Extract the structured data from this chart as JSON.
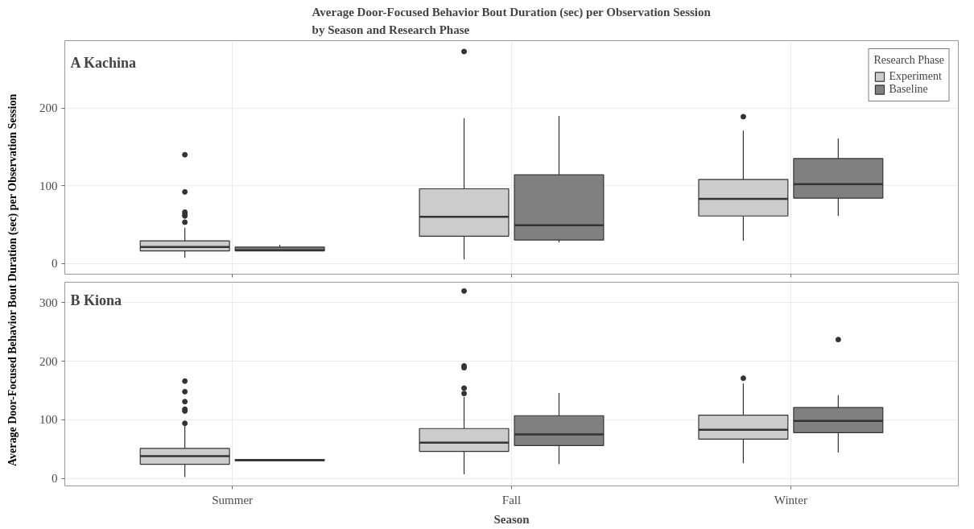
{
  "chart_data": [
    {
      "type": "box",
      "title": "Average Door-Focused Behavior Bout Duration (sec) per Observation Session\nby Season and Research Phase",
      "ylabel": "Average Door-Focused Behavior Bout Duration (sec) per Observation Session",
      "annotations": [
        "A Kachina"
      ],
      "ylim": [
        -14,
        287
      ],
      "yticks": [
        0,
        100,
        200
      ],
      "grid": true,
      "legend": "top right",
      "legend_title": "Research Phase",
      "tick_labels": "y",
      "series": [
        {
          "name": "Experiment",
          "color": "#cccccc",
          "boxes": [
            {
              "low": 7,
              "q1": 16,
              "median": 21,
              "q3": 29,
              "high": 46,
              "outliers": [
                140,
                92,
                66,
                63,
                61,
                53
              ]
            },
            {
              "low": 5,
              "q1": 35,
              "median": 60,
              "q3": 96,
              "high": 187,
              "outliers": [
                273
              ]
            },
            {
              "low": 29,
              "q1": 61,
              "median": 83,
              "q3": 108,
              "high": 171,
              "outliers": [
                189
              ]
            }
          ]
        },
        {
          "name": "Baseline",
          "color": "#808080",
          "boxes": [
            {
              "low": 16,
              "q1": 16,
              "median": 17,
              "q3": 21,
              "high": 24
            },
            {
              "low": 27,
              "q1": 30,
              "median": 49,
              "q3": 114,
              "high": 190
            },
            {
              "low": 61,
              "q1": 84,
              "median": 102,
              "q3": 135,
              "high": 161
            }
          ]
        }
      ]
    },
    {
      "type": "box",
      "xlabel": "Season",
      "annotations": [
        "B Kiona"
      ],
      "categories": [
        "Summer",
        "Fall",
        "Winter"
      ],
      "ylim": [
        -13,
        335
      ],
      "yticks": [
        0,
        100,
        200,
        300
      ],
      "grid": true,
      "series": [
        {
          "color": "#cccccc",
          "boxes": [
            {
              "low": 2,
              "q1": 24,
              "median": 38,
              "q3": 51,
              "high": 90,
              "outliers": [
                166,
                148,
                131,
                118,
                115,
                94
              ]
            },
            {
              "low": 7,
              "q1": 46,
              "median": 61,
              "q3": 85,
              "high": 139,
              "outliers": [
                145,
                154,
                189,
                192,
                320
              ]
            },
            {
              "low": 26,
              "q1": 67,
              "median": 83,
              "q3": 108,
              "high": 162,
              "outliers": [
                171
              ]
            }
          ]
        },
        {
          "color": "#808080",
          "boxes": [
            {
              "low": 30,
              "q1": 30,
              "median": 31,
              "q3": 32,
              "high": 32
            },
            {
              "low": 24,
              "q1": 56,
              "median": 75,
              "q3": 107,
              "high": 146
            },
            {
              "low": 44,
              "q1": 78,
              "median": 98,
              "q3": 121,
              "high": 142,
              "outliers": [
                237
              ]
            }
          ]
        }
      ]
    }
  ]
}
